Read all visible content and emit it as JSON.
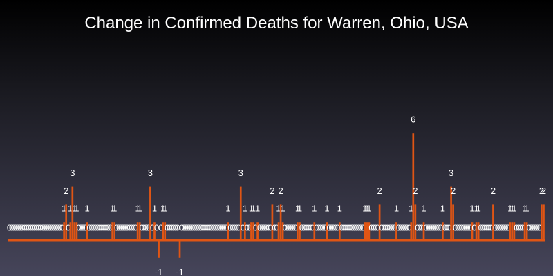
{
  "chart_data": {
    "type": "bar",
    "title": "Change in Confirmed Deaths for Warren, Ohio, USA",
    "xlabel": "",
    "ylabel": "",
    "ylim": [
      -1,
      6
    ],
    "grid": false,
    "legend": "none",
    "bar_color": "#e05514",
    "label_color": "#ffffff",
    "values": [
      0,
      0,
      0,
      0,
      0,
      0,
      0,
      0,
      0,
      0,
      0,
      0,
      0,
      0,
      0,
      0,
      0,
      0,
      0,
      0,
      0,
      0,
      0,
      0,
      0,
      0,
      1,
      2,
      0,
      1,
      3,
      1,
      1,
      0,
      0,
      0,
      0,
      1,
      0,
      0,
      0,
      0,
      0,
      0,
      0,
      0,
      0,
      0,
      0,
      1,
      1,
      0,
      0,
      0,
      0,
      0,
      0,
      0,
      0,
      0,
      0,
      1,
      1,
      0,
      0,
      0,
      0,
      3,
      0,
      1,
      0,
      -1,
      0,
      1,
      1,
      0,
      0,
      0,
      0,
      0,
      0,
      -1,
      0,
      0,
      0,
      0,
      0,
      0,
      0,
      0,
      0,
      0,
      0,
      0,
      0,
      0,
      0,
      0,
      0,
      0,
      0,
      0,
      0,
      0,
      1,
      0,
      0,
      0,
      0,
      0,
      3,
      0,
      1,
      0,
      0,
      1,
      1,
      0,
      1,
      0,
      0,
      0,
      0,
      0,
      0,
      2,
      0,
      0,
      1,
      2,
      1,
      0,
      0,
      0,
      0,
      0,
      0,
      1,
      1,
      0,
      0,
      0,
      0,
      0,
      0,
      1,
      0,
      0,
      0,
      0,
      0,
      1,
      0,
      0,
      0,
      0,
      0,
      1,
      0,
      0,
      0,
      0,
      0,
      0,
      0,
      0,
      0,
      0,
      0,
      1,
      1,
      1,
      0,
      0,
      0,
      0,
      2,
      0,
      0,
      0,
      0,
      0,
      0,
      0,
      1,
      0,
      0,
      0,
      0,
      0,
      0,
      1,
      6,
      2,
      0,
      0,
      0,
      1,
      0,
      0,
      0,
      0,
      0,
      0,
      0,
      0,
      1,
      0,
      0,
      0,
      3,
      2,
      0,
      0,
      0,
      0,
      0,
      0,
      0,
      0,
      1,
      0,
      1,
      1,
      0,
      0,
      0,
      0,
      0,
      0,
      2,
      0,
      0,
      0,
      0,
      0,
      0,
      0,
      1,
      1,
      1,
      0,
      0,
      0,
      0,
      1,
      1,
      0,
      0,
      0,
      0,
      0,
      0,
      2,
      2
    ]
  }
}
